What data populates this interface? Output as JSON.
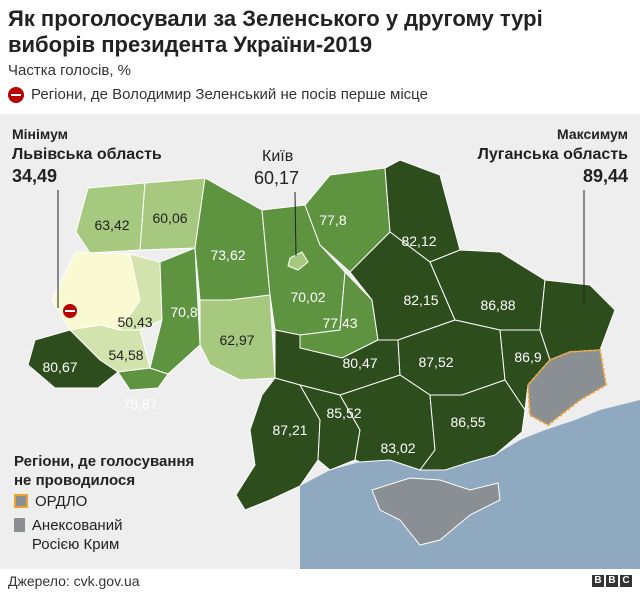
{
  "title": "Як проголосували за Зеленського у другому турі виборів президента України-2019",
  "subtitle": "Частка голосів, %",
  "legend_not_first": "Регіони, де Володимир Зеленський не посів перше місце",
  "callouts": {
    "min_label": "Мінімум",
    "min_region": "Львівська область",
    "min_value": "34,49",
    "max_label": "Максимум",
    "max_region": "Луганська область",
    "max_value": "89,44",
    "kyiv_name": "Київ",
    "kyiv_value": "60,17"
  },
  "regions": [
    {
      "value": "63,42",
      "share": 63.42
    },
    {
      "value": "60,06",
      "share": 60.06
    },
    {
      "value": "34,49",
      "share": 34.49,
      "not_first": true
    },
    {
      "value": "50,43",
      "share": 50.43
    },
    {
      "value": "54,58",
      "share": 54.58
    },
    {
      "value": "80,67",
      "share": 80.67
    },
    {
      "value": "75,87",
      "share": 75.87
    },
    {
      "value": "70,8",
      "share": 70.8
    },
    {
      "value": "73,62",
      "share": 73.62
    },
    {
      "value": "62,97",
      "share": 62.97
    },
    {
      "value": "70,02",
      "share": 70.02
    },
    {
      "value": "60,17",
      "share": 60.17
    },
    {
      "value": "77,8",
      "share": 77.8
    },
    {
      "value": "77,43",
      "share": 77.43
    },
    {
      "value": "82,12",
      "share": 82.12
    },
    {
      "value": "82,15",
      "share": 82.15
    },
    {
      "value": "86,88",
      "share": 86.88
    },
    {
      "value": "80,47",
      "share": 80.47
    },
    {
      "value": "87,52",
      "share": 87.52
    },
    {
      "value": "86,9",
      "share": 86.9
    },
    {
      "value": "87,21",
      "share": 87.21
    },
    {
      "value": "85,52",
      "share": 85.52
    },
    {
      "value": "83,02",
      "share": 83.02
    },
    {
      "value": "86,55",
      "share": 86.55
    },
    {
      "value": "89,44",
      "share": 89.44
    }
  ],
  "no_vote": {
    "title": "Регіони, де голосування не проводилося",
    "ordlo": "ОРДЛО",
    "crimea": "Анексований Росією Крим"
  },
  "source": "Джерело: cvk.gov.ua",
  "logo": "BBC",
  "colors": {
    "lt50": "#fafad2",
    "r50_60": "#d3e3ad",
    "r60_70": "#a6c97f",
    "r70_80": "#5e9440",
    "r80_90": "#2d4d1d",
    "no_vote": "#8a8f93",
    "ordlo_border": "#f0a22e",
    "sea": "#8fa9c0",
    "not_first_marker": "#b80000"
  }
}
